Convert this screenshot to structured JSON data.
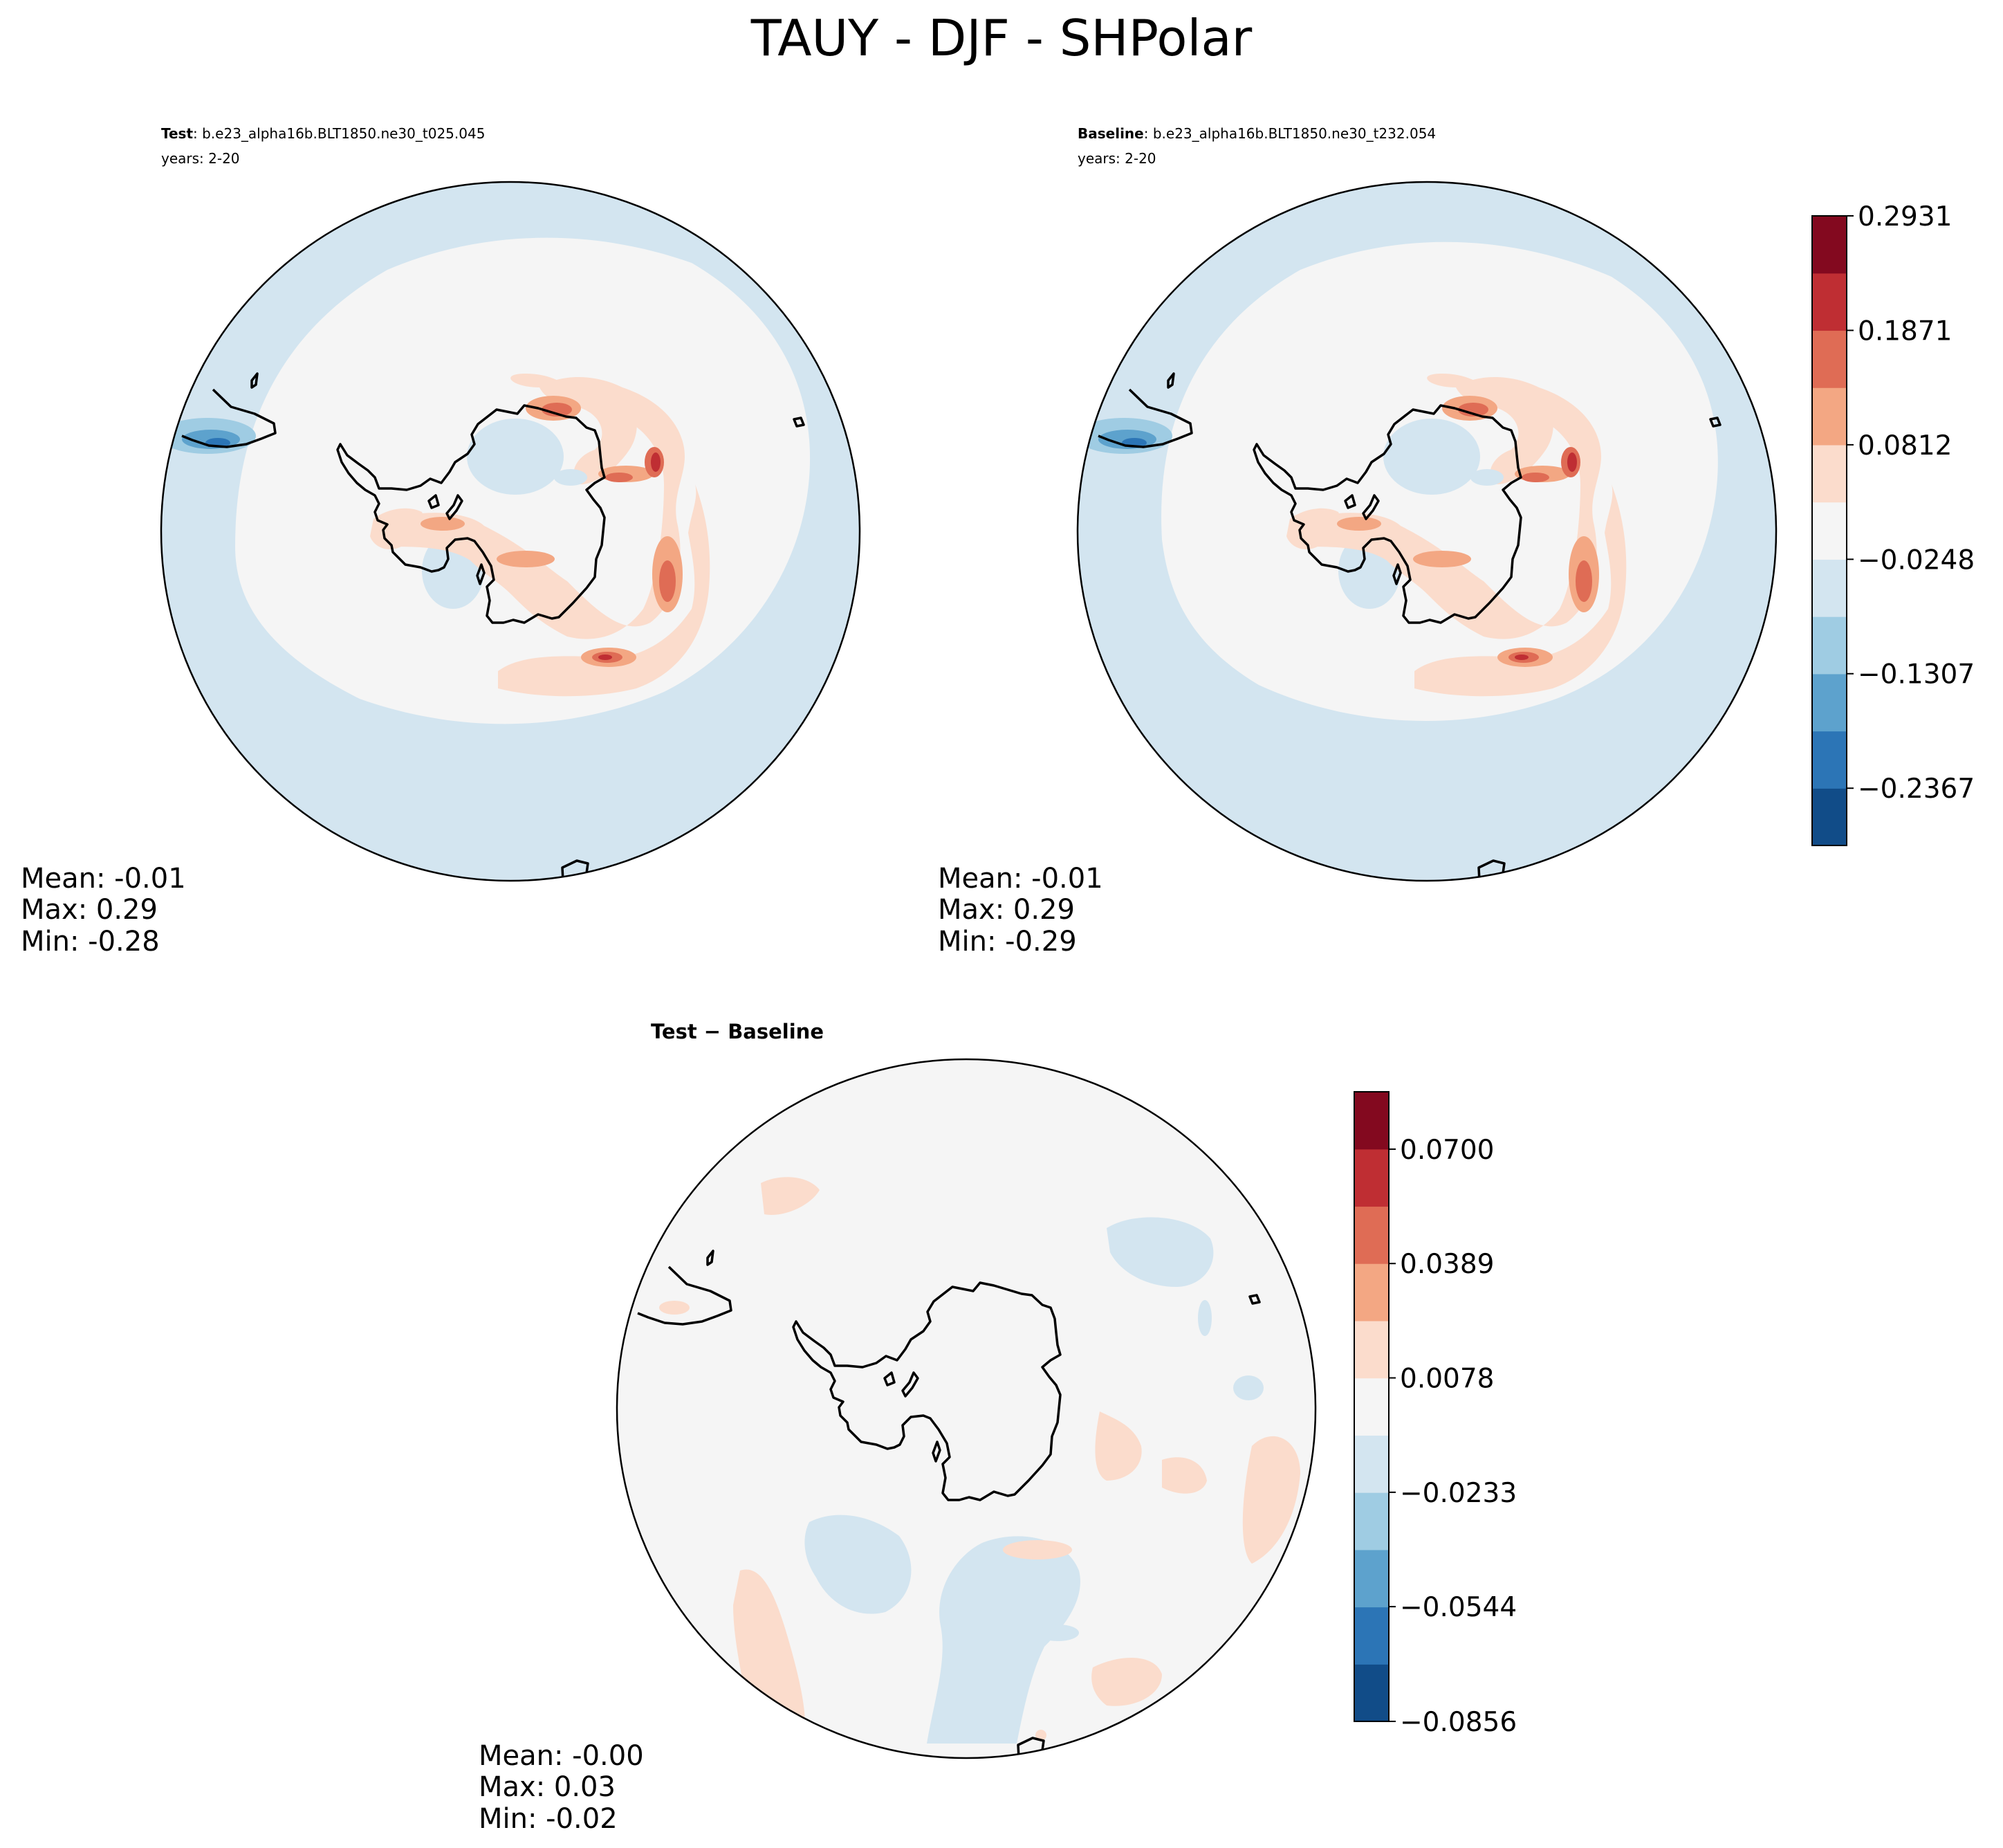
{
  "figure": {
    "title": "TAUY - DJF - SHPolar"
  },
  "palette": {
    "levels": [
      "#114c88",
      "#2c75b6",
      "#5da2cd",
      "#9fcce3",
      "#d3e5f0",
      "#f5f5f5",
      "#fbdccc",
      "#f3a783",
      "#df6c55",
      "#bf2e33",
      "#83091f"
    ],
    "ocean": "#f5f5f5",
    "coast": "#000000"
  },
  "panels": {
    "test": {
      "label_bold": "Test",
      "label_rest": ": b.e23_alpha16b.BLT1850.ne30_t025.045",
      "years": "years: 2-20",
      "mean": "Mean: -0.01",
      "max": "Max:  0.29",
      "min": "Min: -0.28"
    },
    "baseline": {
      "label_bold": "Baseline",
      "label_rest": ": b.e23_alpha16b.BLT1850.ne30_t232.054",
      "years": "years: 2-20",
      "mean": "Mean: -0.01",
      "max": "Max:  0.29",
      "min": "Min: -0.29"
    },
    "diff": {
      "title": "Test − Baseline",
      "mean": "Mean: -0.00",
      "max": "Max:  0.03",
      "min": "Min: -0.02"
    }
  },
  "colorbars": {
    "top": {
      "ticks": [
        "0.2931",
        "0.1871",
        "0.0812",
        "−0.0248",
        "−0.1307",
        "−0.2367"
      ],
      "tick_values": [
        0.2931,
        0.1871,
        0.0812,
        -0.0248,
        -0.1307,
        -0.2367
      ],
      "range": [
        -0.2897,
        0.2931
      ]
    },
    "diff": {
      "ticks": [
        "0.0700",
        "0.0389",
        "0.0078",
        "−0.0233",
        "−0.0544",
        "−0.0856"
      ],
      "tick_values": [
        0.07,
        0.0389,
        0.0078,
        -0.0233,
        -0.0544,
        -0.0856
      ],
      "range": [
        -0.0856,
        0.0856
      ]
    }
  },
  "chart_data": [
    {
      "type": "heatmap",
      "title": "Test: b.e23_alpha16b.BLT1850.ne30_t025.045",
      "subtitle": "years: 2-20",
      "variable": "TAUY",
      "season": "DJF",
      "region": "SHPolar",
      "stats": {
        "mean": -0.01,
        "max": 0.29,
        "min": -0.28
      },
      "colorbar_ticks": [
        0.2931,
        0.1871,
        0.0812,
        -0.0248,
        -0.1307,
        -0.2367
      ],
      "legend": "right"
    },
    {
      "type": "heatmap",
      "title": "Baseline: b.e23_alpha16b.BLT1850.ne30_t232.054",
      "subtitle": "years: 2-20",
      "variable": "TAUY",
      "season": "DJF",
      "region": "SHPolar",
      "stats": {
        "mean": -0.01,
        "max": 0.29,
        "min": -0.29
      },
      "colorbar_ticks": [
        0.2931,
        0.1871,
        0.0812,
        -0.0248,
        -0.1307,
        -0.2367
      ],
      "legend": "right"
    },
    {
      "type": "heatmap",
      "title": "Test − Baseline",
      "variable": "TAUY",
      "season": "DJF",
      "region": "SHPolar",
      "stats": {
        "mean": -0.0,
        "max": 0.03,
        "min": -0.02
      },
      "colorbar_ticks": [
        0.07,
        0.0389,
        0.0078,
        -0.0233,
        -0.0544,
        -0.0856
      ],
      "legend": "right"
    }
  ]
}
